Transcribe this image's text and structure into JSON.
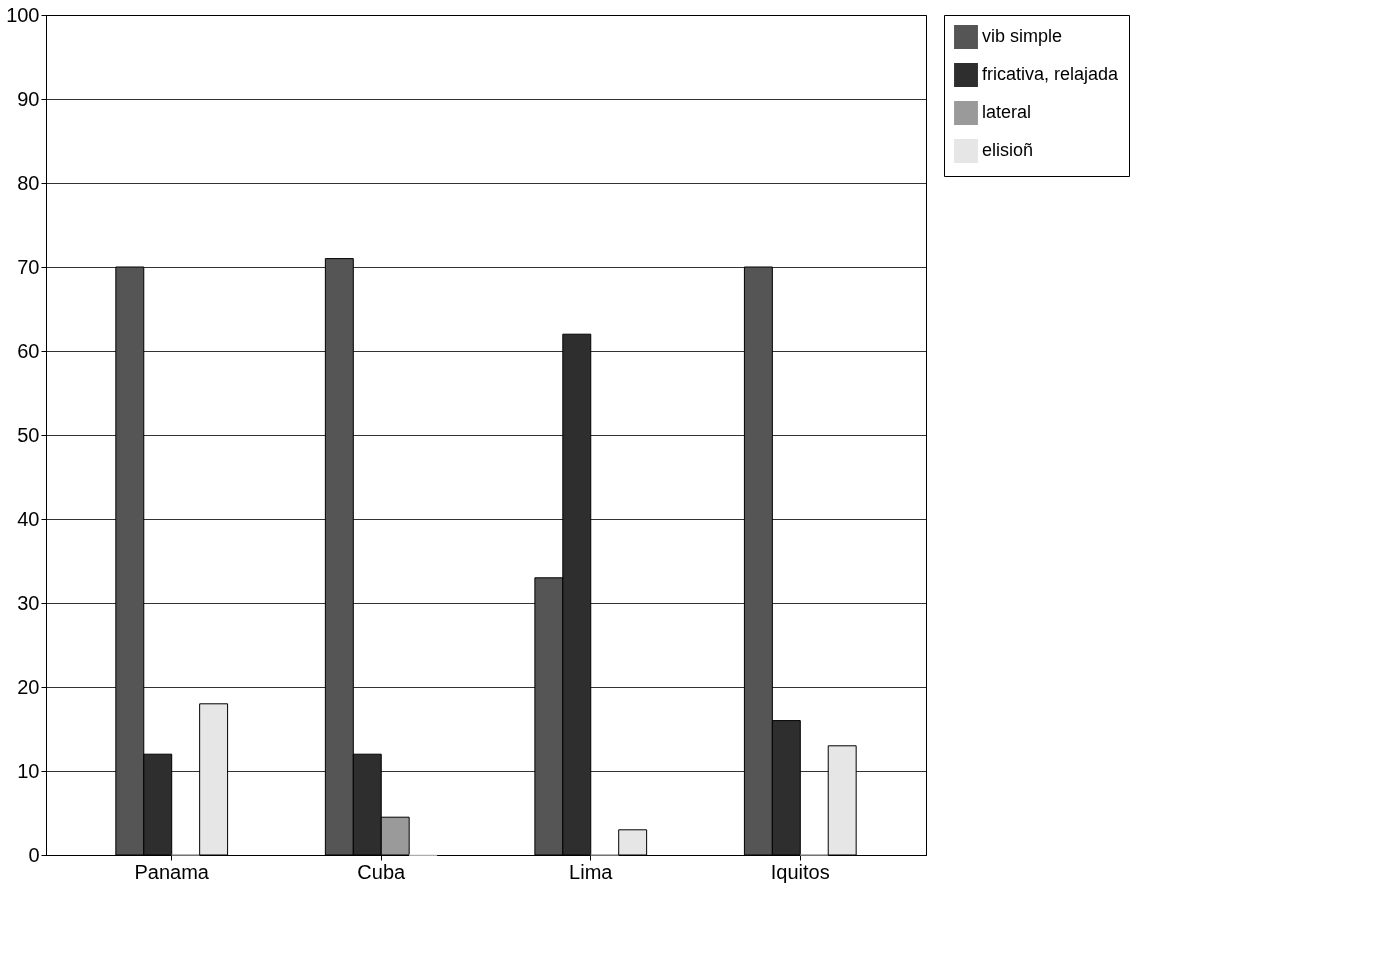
{
  "chart_data": {
    "type": "bar",
    "categories": [
      "Panama",
      "Cuba",
      "Lima",
      "Iquitos"
    ],
    "series": [
      {
        "name": "vib simple",
        "color": "#555555",
        "values": [
          70,
          71,
          33,
          70
        ]
      },
      {
        "name": "fricativa, relajada",
        "color": "#2e2e2e",
        "values": [
          12,
          12,
          62,
          16
        ]
      },
      {
        "name": "lateral",
        "color": "#9a9a9a",
        "values": [
          0,
          4.5,
          0,
          0
        ]
      },
      {
        "name": "elisioñ",
        "color": "#e6e6e6",
        "values": [
          18,
          0,
          3,
          13
        ]
      }
    ],
    "ylim": [
      0,
      100
    ],
    "yticks": [
      0,
      10,
      20,
      30,
      40,
      50,
      60,
      70,
      80,
      90,
      100
    ],
    "grid": "y",
    "legend": "top right"
  }
}
